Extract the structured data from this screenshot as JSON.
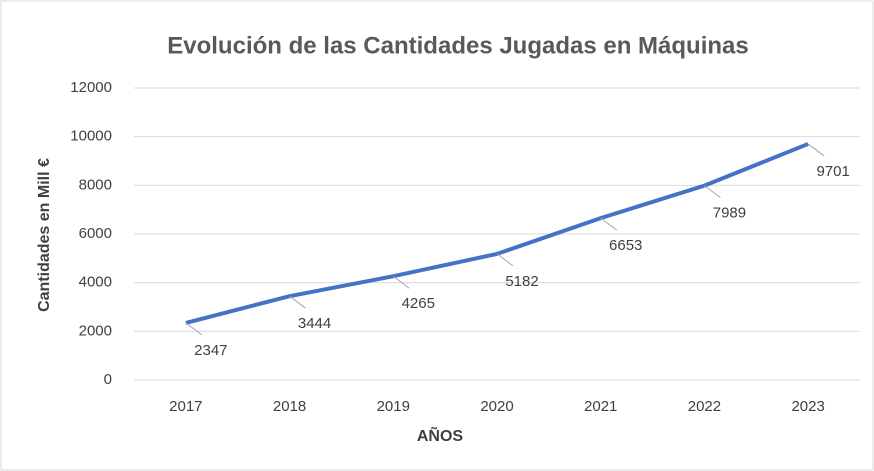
{
  "chart_data": {
    "type": "line",
    "title": "Evolución de las Cantidades Jugadas en Máquinas",
    "x_label": "AÑOS",
    "y_label": "Cantidades en Mill €",
    "categories": [
      "2017",
      "2018",
      "2019",
      "2020",
      "2021",
      "2022",
      "2023"
    ],
    "series": [
      {
        "name": "Cantidades",
        "color": "#4472c4",
        "values": [
          2347,
          3444,
          4265,
          5182,
          6653,
          7989,
          9701
        ]
      }
    ],
    "ylim": [
      0,
      12000
    ],
    "yticks": [
      0,
      2000,
      4000,
      6000,
      8000,
      10000,
      12000
    ],
    "grid": true,
    "data_labels": true
  }
}
